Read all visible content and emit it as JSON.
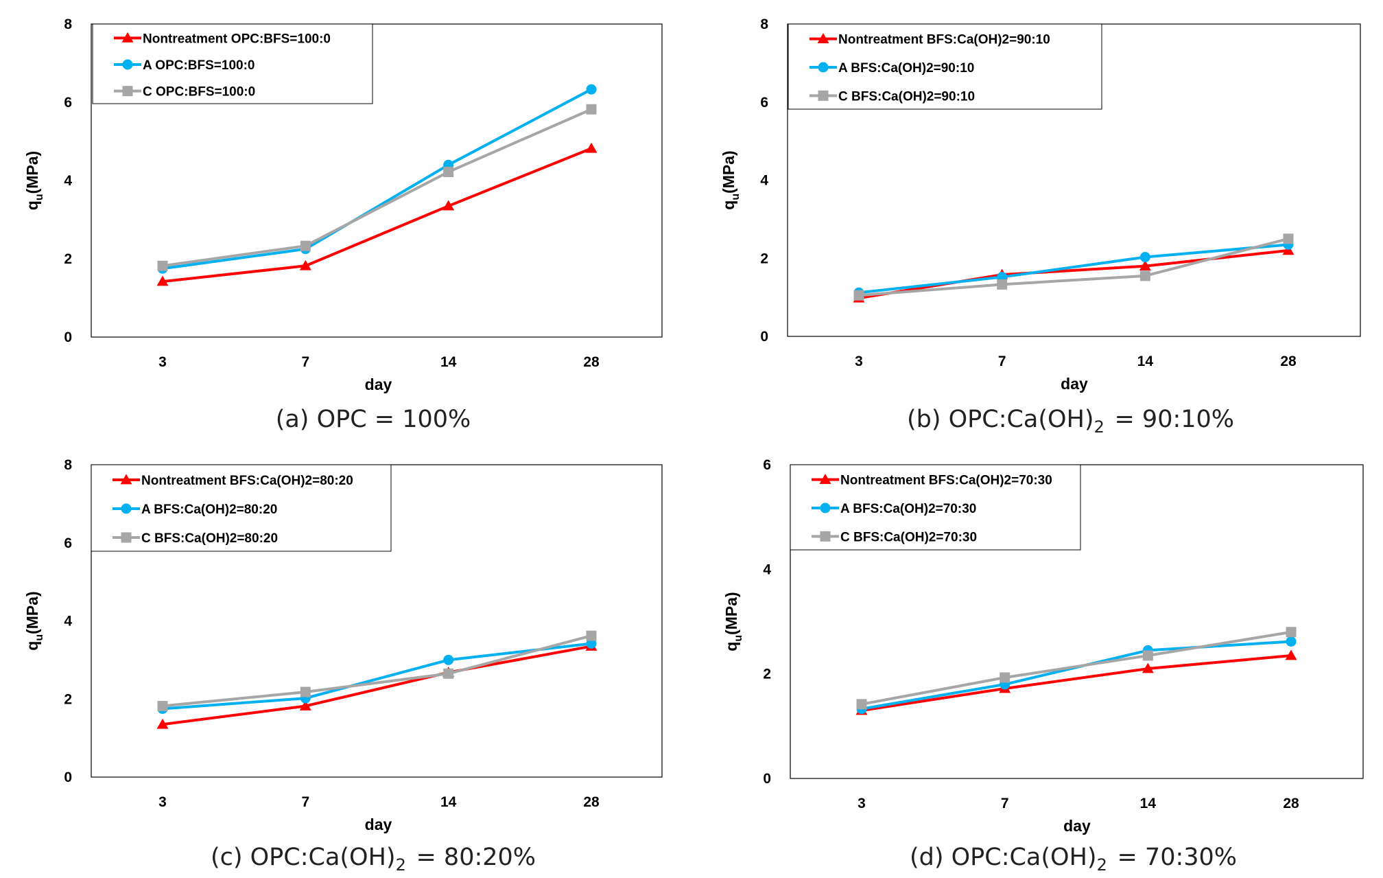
{
  "colors": {
    "nontreatment": "#ff0000",
    "A": "#00b0f0",
    "C": "#a6a6a6",
    "axis": "#595959",
    "frame": "#000000"
  },
  "chart_data": [
    {
      "type": "line",
      "caption": "(a) OPC = 100%",
      "categories": [
        "3",
        "7",
        "14",
        "28"
      ],
      "xlabel": "day",
      "ylabel": "qu(MPa)",
      "ylim": [
        0,
        8
      ],
      "yticks": [
        "0",
        "2",
        "4",
        "6",
        "8"
      ],
      "grid": false,
      "legend_position": "top-left",
      "series": [
        {
          "name": "Nontreatment OPC:BFS=100:0",
          "marker": "triangle",
          "color": "#ff0000",
          "values": [
            1.42,
            1.82,
            3.35,
            4.82
          ]
        },
        {
          "name": "A OPC:BFS=100:0",
          "marker": "circle",
          "color": "#00b0f0",
          "values": [
            1.75,
            2.25,
            4.4,
            6.33
          ]
        },
        {
          "name": "C OPC:BFS=100:0",
          "marker": "square",
          "color": "#a6a6a6",
          "values": [
            1.82,
            2.33,
            4.22,
            5.82
          ]
        }
      ]
    },
    {
      "type": "line",
      "caption": "(b) OPC:Ca(OH)2 = 90:10%",
      "categories": [
        "3",
        "7",
        "14",
        "28"
      ],
      "xlabel": "day",
      "ylabel": "qu(MPa)",
      "ylim": [
        0,
        8
      ],
      "yticks": [
        "0",
        "2",
        "4",
        "6",
        "8"
      ],
      "grid": false,
      "legend_position": "top-left",
      "series": [
        {
          "name": "Nontreatment BFS:Ca(OH)2=90:10",
          "marker": "triangle",
          "color": "#ff0000",
          "values": [
            0.98,
            1.58,
            1.8,
            2.2
          ]
        },
        {
          "name": "A BFS:Ca(OH)2=90:10",
          "marker": "circle",
          "color": "#00b0f0",
          "values": [
            1.12,
            1.52,
            2.03,
            2.35
          ]
        },
        {
          "name": "C BFS:Ca(OH)2=90:10",
          "marker": "square",
          "color": "#a6a6a6",
          "values": [
            1.05,
            1.33,
            1.55,
            2.5
          ]
        }
      ]
    },
    {
      "type": "line",
      "caption": "(c) OPC:Ca(OH)2 = 80:20%",
      "categories": [
        "3",
        "7",
        "14",
        "28"
      ],
      "xlabel": "day",
      "ylabel": "qu(MPa)",
      "ylim": [
        0,
        8
      ],
      "yticks": [
        "0",
        "2",
        "4",
        "6",
        "8"
      ],
      "grid": false,
      "legend_position": "top-left",
      "series": [
        {
          "name": "Nontreatment BFS:Ca(OH)2=80:20",
          "marker": "triangle",
          "color": "#ff0000",
          "values": [
            1.35,
            1.82,
            2.68,
            3.35
          ]
        },
        {
          "name": "A BFS:Ca(OH)2=80:20",
          "marker": "circle",
          "color": "#00b0f0",
          "values": [
            1.75,
            2.02,
            3.0,
            3.42
          ]
        },
        {
          "name": "C BFS:Ca(OH)2=80:20",
          "marker": "square",
          "color": "#a6a6a6",
          "values": [
            1.82,
            2.18,
            2.65,
            3.62
          ]
        }
      ]
    },
    {
      "type": "line",
      "caption": "(d) OPC:Ca(OH)2 = 70:30%",
      "categories": [
        "3",
        "7",
        "14",
        "28"
      ],
      "xlabel": "day",
      "ylabel": "qu(MPa)",
      "ylim": [
        0,
        6
      ],
      "yticks": [
        "0",
        "2",
        "4",
        "6"
      ],
      "grid": false,
      "legend_position": "top-left",
      "series": [
        {
          "name": "Nontreatment BFS:Ca(OH)2=70:30",
          "marker": "triangle",
          "color": "#ff0000",
          "values": [
            1.3,
            1.72,
            2.1,
            2.35
          ]
        },
        {
          "name": "A BFS:Ca(OH)2=70:30",
          "marker": "circle",
          "color": "#00b0f0",
          "values": [
            1.33,
            1.8,
            2.45,
            2.62
          ]
        },
        {
          "name": "C BFS:Ca(OH)2=70:30",
          "marker": "square",
          "color": "#a6a6a6",
          "values": [
            1.42,
            1.93,
            2.35,
            2.8
          ]
        }
      ]
    }
  ]
}
